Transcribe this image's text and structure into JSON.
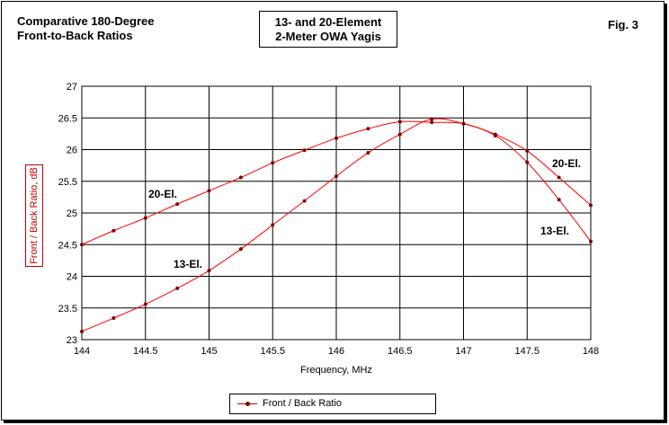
{
  "header": {
    "title_line1": "Comparative 180-Degree",
    "title_line2": "Front-to-Back Ratios",
    "subtitle_line1": "13- and 20-Element",
    "subtitle_line2": "2-Meter OWA Yagis",
    "fig_label": "Fig. 3"
  },
  "chart_data": {
    "type": "line",
    "title": "13- and 20-Element 2-Meter OWA Yagis",
    "xlabel": "Frequency, MHz",
    "ylabel": "Front / Back Ratio, dB",
    "xlim": [
      144,
      148
    ],
    "ylim": [
      23,
      27
    ],
    "x_ticks": [
      "144",
      "144.5",
      "145",
      "145.5",
      "146",
      "146.5",
      "147",
      "147.5",
      "148"
    ],
    "y_ticks": [
      "23",
      "23.5",
      "24",
      "24.5",
      "25",
      "25.5",
      "26",
      "26.5",
      "27"
    ],
    "grid": true,
    "legend": [
      "Front / Back Ratio"
    ],
    "series": [
      {
        "name": "20-El.",
        "x": [
          144,
          144.25,
          144.5,
          144.75,
          145,
          145.25,
          145.5,
          145.75,
          146,
          146.25,
          146.5,
          146.75,
          147,
          147.25,
          147.5,
          147.75,
          148
        ],
        "values": [
          24.5,
          24.72,
          24.92,
          25.14,
          25.35,
          25.56,
          25.79,
          25.99,
          26.18,
          26.33,
          26.44,
          26.43,
          26.41,
          26.24,
          25.98,
          25.56,
          25.12
        ]
      },
      {
        "name": "13-El.",
        "x": [
          144,
          144.25,
          144.5,
          144.75,
          145,
          145.25,
          145.5,
          145.75,
          146,
          146.25,
          146.5,
          146.75,
          147,
          147.25,
          147.5,
          147.75,
          148
        ],
        "values": [
          23.13,
          23.34,
          23.56,
          23.81,
          24.09,
          24.43,
          24.81,
          25.19,
          25.58,
          25.95,
          26.24,
          26.48,
          26.41,
          26.22,
          25.8,
          25.21,
          24.55
        ]
      }
    ],
    "annotations": [
      "20-El.",
      "13-El.",
      "20-El.",
      "13-El."
    ]
  }
}
